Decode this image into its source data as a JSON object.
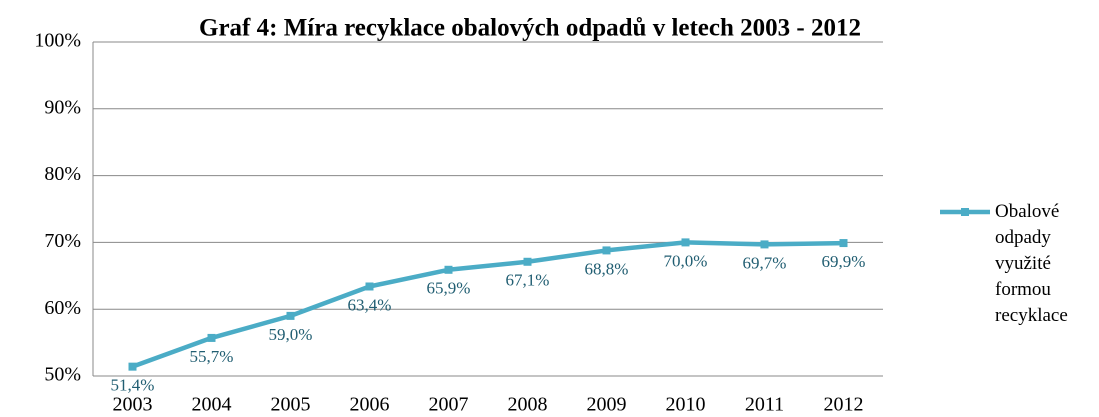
{
  "chart_data": {
    "type": "line",
    "title": "Graf 4: Míra recyklace obalových odpadů v letech 2003 - 2012",
    "categories": [
      "2003",
      "2004",
      "2005",
      "2006",
      "2007",
      "2008",
      "2009",
      "2010",
      "2011",
      "2012"
    ],
    "series": [
      {
        "name": "Obalové odpady využité formou recyklace",
        "color": "#4bacc6",
        "values": [
          51.4,
          55.7,
          59.0,
          63.4,
          65.9,
          67.1,
          68.8,
          70.0,
          69.7,
          69.9
        ],
        "value_labels": [
          "51,4%",
          "55,7%",
          "59,0%",
          "63,4%",
          "65,9%",
          "67,1%",
          "68,8%",
          "70,0%",
          "69,7%",
          "69,9%"
        ]
      }
    ],
    "ylim": [
      50,
      100
    ],
    "yticks": [
      {
        "value": 50,
        "label": "50%"
      },
      {
        "value": 60,
        "label": "60%"
      },
      {
        "value": 70,
        "label": "70%"
      },
      {
        "value": 80,
        "label": "80%"
      },
      {
        "value": 90,
        "label": "90%"
      },
      {
        "value": 100,
        "label": "100%"
      }
    ],
    "grid": true,
    "legend": "right"
  }
}
